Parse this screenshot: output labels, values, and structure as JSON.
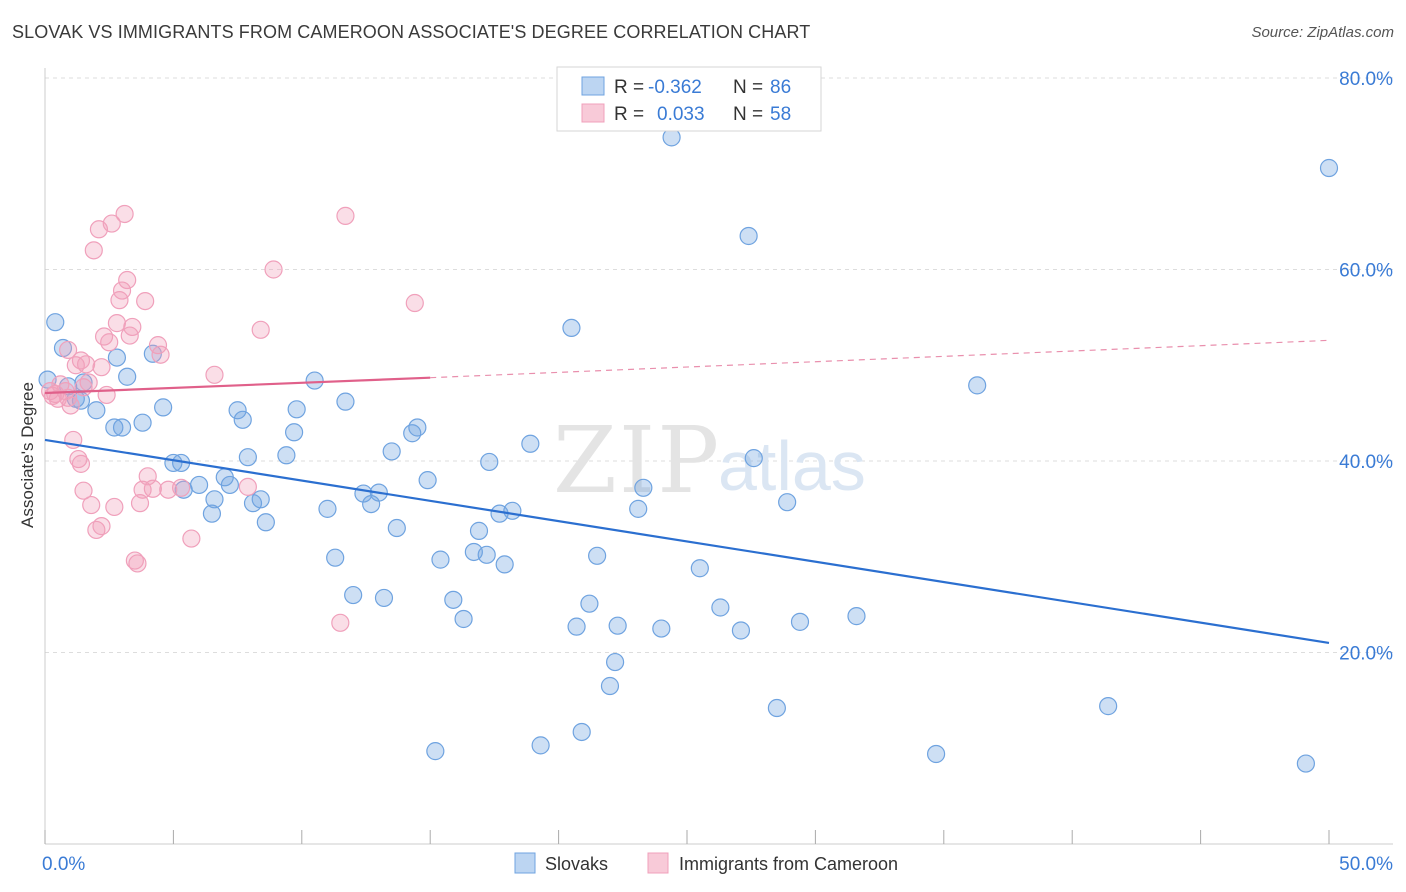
{
  "header": {
    "title": "SLOVAK VS IMMIGRANTS FROM CAMEROON ASSOCIATE'S DEGREE CORRELATION CHART",
    "source": "Source: ZipAtlas.com"
  },
  "watermark": {
    "zip": "ZIP",
    "atlas": "atlas"
  },
  "legend_box": {
    "rows": [
      {
        "r_label": "R =",
        "r_value": "-0.362",
        "n_label": "N =",
        "n_value": "86"
      },
      {
        "r_label": "R =",
        "r_value": "0.033",
        "n_label": "N =",
        "n_value": "58"
      }
    ]
  },
  "chart_data": {
    "type": "scatter",
    "ylabel": "Associate's Degree",
    "xlim": [
      0,
      50
    ],
    "ylim": [
      0,
      80
    ],
    "x_tick_labels": [
      "0.0%",
      "50.0%"
    ],
    "y_tick_labels": [
      "20.0%",
      "40.0%",
      "60.0%",
      "80.0%"
    ],
    "y_ticks": [
      20,
      40,
      60,
      80
    ],
    "grid": true,
    "legend_position": "bottom",
    "colors": {
      "slovaks": "#6fa3e0",
      "cameroon": "#f0a0bb",
      "slovaks_line": "#2b6fd0",
      "cameroon_line": "#e0608a",
      "value_text": "#3a7bd5"
    },
    "series": [
      {
        "name": "Slovaks",
        "r": -0.362,
        "n": 86,
        "trend": {
          "x": [
            0,
            50
          ],
          "y": [
            42.2,
            21.0
          ]
        },
        "points": [
          [
            0.1,
            48.5
          ],
          [
            0.4,
            54.5
          ],
          [
            0.7,
            51.8
          ],
          [
            0.9,
            47.8
          ],
          [
            1.2,
            46.5
          ],
          [
            1.5,
            48.2
          ],
          [
            1.4,
            46.3
          ],
          [
            2.0,
            45.3
          ],
          [
            2.8,
            50.8
          ],
          [
            3.2,
            48.8
          ],
          [
            4.2,
            51.2
          ],
          [
            3.0,
            43.5
          ],
          [
            2.7,
            43.5
          ],
          [
            3.8,
            44.0
          ],
          [
            4.6,
            45.6
          ],
          [
            5.0,
            39.8
          ],
          [
            5.3,
            39.8
          ],
          [
            5.4,
            37.0
          ],
          [
            6.0,
            37.5
          ],
          [
            6.5,
            34.5
          ],
          [
            6.6,
            36.0
          ],
          [
            7.0,
            38.3
          ],
          [
            7.2,
            37.5
          ],
          [
            7.5,
            45.3
          ],
          [
            7.7,
            44.3
          ],
          [
            7.9,
            40.4
          ],
          [
            8.1,
            35.6
          ],
          [
            8.4,
            36.0
          ],
          [
            8.6,
            33.6
          ],
          [
            9.4,
            40.6
          ],
          [
            9.7,
            43.0
          ],
          [
            9.8,
            45.4
          ],
          [
            10.5,
            48.4
          ],
          [
            11.0,
            35.0
          ],
          [
            11.3,
            29.9
          ],
          [
            11.7,
            46.2
          ],
          [
            12.0,
            26.0
          ],
          [
            12.4,
            36.6
          ],
          [
            12.7,
            35.5
          ],
          [
            13.0,
            36.7
          ],
          [
            13.2,
            25.7
          ],
          [
            13.5,
            41.0
          ],
          [
            13.7,
            33.0
          ],
          [
            14.3,
            42.9
          ],
          [
            14.5,
            43.5
          ],
          [
            14.9,
            38.0
          ],
          [
            15.2,
            9.7
          ],
          [
            15.4,
            29.7
          ],
          [
            15.9,
            25.5
          ],
          [
            16.3,
            23.5
          ],
          [
            16.7,
            30.5
          ],
          [
            16.9,
            32.7
          ],
          [
            17.2,
            30.2
          ],
          [
            17.3,
            39.9
          ],
          [
            17.7,
            34.5
          ],
          [
            17.9,
            29.2
          ],
          [
            18.2,
            34.8
          ],
          [
            18.9,
            41.8
          ],
          [
            19.3,
            10.3
          ],
          [
            20.5,
            53.9
          ],
          [
            20.7,
            22.7
          ],
          [
            20.9,
            11.7
          ],
          [
            21.2,
            25.1
          ],
          [
            21.5,
            30.1
          ],
          [
            22.0,
            16.5
          ],
          [
            22.2,
            19.0
          ],
          [
            22.3,
            22.8
          ],
          [
            23.1,
            35.0
          ],
          [
            23.3,
            37.2
          ],
          [
            24.0,
            22.5
          ],
          [
            24.4,
            73.8
          ],
          [
            25.5,
            28.8
          ],
          [
            26.3,
            24.7
          ],
          [
            27.1,
            22.3
          ],
          [
            27.4,
            63.5
          ],
          [
            27.6,
            40.3
          ],
          [
            28.5,
            14.2
          ],
          [
            28.9,
            35.7
          ],
          [
            29.4,
            23.2
          ],
          [
            31.6,
            23.8
          ],
          [
            34.7,
            9.4
          ],
          [
            36.3,
            47.9
          ],
          [
            41.4,
            14.4
          ],
          [
            49.1,
            8.4
          ],
          [
            50.0,
            70.6
          ]
        ]
      },
      {
        "name": "Immigrants from Cameroon",
        "r": 0.033,
        "n": 58,
        "trend": {
          "x": [
            0,
            15
          ],
          "y": [
            47.1,
            48.7
          ]
        },
        "trend_dashed": {
          "x": [
            15,
            50
          ],
          "y": [
            48.7,
            52.6
          ]
        },
        "points": [
          [
            0.2,
            47.3
          ],
          [
            0.3,
            46.8
          ],
          [
            0.4,
            47.0
          ],
          [
            0.5,
            46.5
          ],
          [
            0.6,
            48.0
          ],
          [
            0.8,
            47.3
          ],
          [
            0.9,
            46.6
          ],
          [
            1.0,
            45.8
          ],
          [
            0.9,
            51.6
          ],
          [
            1.1,
            42.2
          ],
          [
            1.2,
            50.0
          ],
          [
            1.3,
            40.2
          ],
          [
            1.4,
            50.5
          ],
          [
            1.5,
            47.7
          ],
          [
            1.4,
            39.7
          ],
          [
            1.6,
            50.1
          ],
          [
            1.5,
            36.9
          ],
          [
            1.7,
            48.2
          ],
          [
            1.8,
            35.4
          ],
          [
            1.9,
            62.0
          ],
          [
            2.0,
            32.8
          ],
          [
            2.1,
            64.2
          ],
          [
            2.2,
            33.2
          ],
          [
            2.2,
            49.8
          ],
          [
            2.3,
            53.0
          ],
          [
            2.4,
            46.9
          ],
          [
            2.5,
            52.4
          ],
          [
            2.6,
            64.8
          ],
          [
            2.7,
            35.2
          ],
          [
            2.8,
            54.4
          ],
          [
            2.9,
            56.8
          ],
          [
            3.0,
            57.8
          ],
          [
            3.1,
            65.8
          ],
          [
            3.2,
            58.9
          ],
          [
            3.3,
            53.1
          ],
          [
            3.4,
            54.0
          ],
          [
            3.5,
            29.6
          ],
          [
            3.6,
            29.3
          ],
          [
            3.7,
            35.6
          ],
          [
            3.8,
            37.0
          ],
          [
            3.9,
            56.7
          ],
          [
            4.0,
            38.4
          ],
          [
            4.2,
            37.1
          ],
          [
            4.4,
            52.1
          ],
          [
            4.5,
            51.1
          ],
          [
            4.8,
            37.0
          ],
          [
            5.3,
            37.2
          ],
          [
            5.7,
            31.9
          ],
          [
            6.6,
            49.0
          ],
          [
            7.9,
            37.3
          ],
          [
            8.4,
            53.7
          ],
          [
            8.9,
            60.0
          ],
          [
            11.5,
            23.1
          ],
          [
            11.7,
            65.6
          ],
          [
            14.4,
            56.5
          ]
        ]
      }
    ]
  },
  "bottom_legend": {
    "items": [
      {
        "label": "Slovaks"
      },
      {
        "label": "Immigrants from Cameroon"
      }
    ]
  }
}
